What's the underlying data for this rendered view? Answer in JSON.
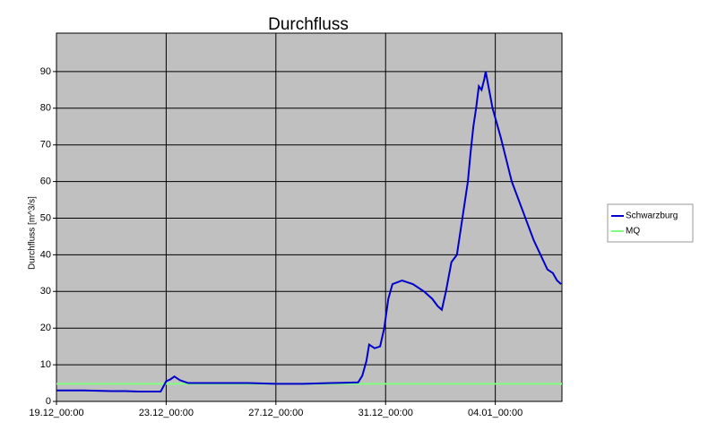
{
  "chart_data": {
    "type": "line",
    "title": "Durchfluss",
    "ylabel": "Durchfluss [m^3/s]",
    "xlim": [
      0,
      18.43
    ],
    "ylim": [
      0,
      100
    ],
    "xticks": [
      {
        "value": 0,
        "label": "19.12_00:00"
      },
      {
        "value": 4,
        "label": "23.12_00:00"
      },
      {
        "value": 8,
        "label": "27.12_00:00"
      },
      {
        "value": 12,
        "label": "31.12_00:00"
      },
      {
        "value": 16,
        "label": "04.01_00:00"
      }
    ],
    "yticks": [
      0,
      10,
      20,
      30,
      40,
      50,
      60,
      70,
      80,
      90
    ],
    "grid": true,
    "legend": "right",
    "series": [
      {
        "name": "Schwarzburg",
        "color": "#0000cc",
        "x": [
          0,
          1,
          2,
          2.5,
          3,
          3.8,
          4.0,
          4.15,
          4.3,
          4.5,
          4.8,
          5.5,
          7,
          8,
          9,
          10,
          11,
          11.15,
          11.3,
          11.4,
          11.6,
          11.8,
          11.95,
          12.1,
          12.25,
          12.6,
          13.0,
          13.4,
          13.7,
          13.9,
          14.05,
          14.2,
          14.4,
          14.6,
          14.8,
          14.9,
          15.0,
          15.1,
          15.2,
          15.3,
          15.4,
          15.5,
          15.6,
          15.65,
          15.75,
          15.9,
          16.05,
          16.2,
          16.4,
          16.6,
          16.8,
          17.0,
          17.2,
          17.4,
          17.65,
          17.9,
          18.1,
          18.25,
          18.4
        ],
        "values": [
          3.0,
          3.0,
          2.8,
          2.8,
          2.7,
          2.7,
          5.5,
          6.0,
          6.8,
          5.8,
          5.0,
          5.0,
          5.0,
          4.8,
          4.8,
          5.0,
          5.2,
          7,
          11,
          15.5,
          14.5,
          15,
          20,
          28,
          32,
          33,
          32,
          30,
          28,
          26,
          25,
          30,
          38,
          40,
          50,
          55,
          60,
          68,
          75,
          80,
          86,
          85,
          88,
          90,
          86,
          80,
          76,
          72,
          66,
          60,
          56,
          52,
          48,
          44,
          40,
          36,
          35,
          33,
          32
        ]
      },
      {
        "name": "MQ",
        "color": "#80ff80",
        "x": [
          0,
          18.43
        ],
        "values": [
          4.8,
          4.8
        ]
      }
    ]
  }
}
